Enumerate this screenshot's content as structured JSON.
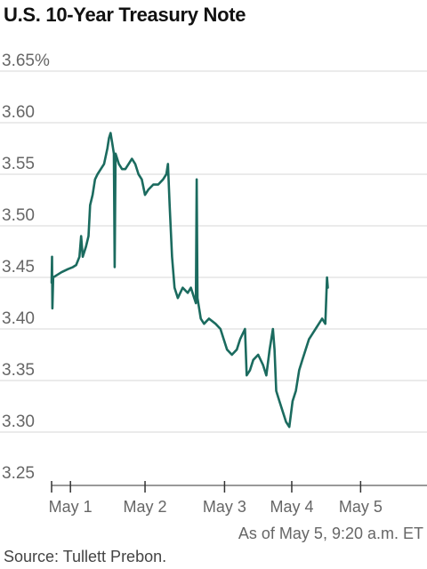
{
  "title": "U.S. 10-Year Treasury Note",
  "note": "As of May 5, 9:20 a.m. ET",
  "source": "Source: Tullett Prebon.",
  "colors": {
    "line": "#1b6b5f",
    "grid": "#d7d7d7",
    "axis": "#333333",
    "tick_text": "#666666"
  },
  "chart_data": {
    "type": "line",
    "title": "U.S. 10-Year Treasury Note",
    "xlabel": "",
    "ylabel": "",
    "ylim": [
      3.25,
      3.65
    ],
    "yticks": [
      {
        "value": 3.65,
        "label": "3.65%"
      },
      {
        "value": 3.6,
        "label": "3.60"
      },
      {
        "value": 3.55,
        "label": "3.55"
      },
      {
        "value": 3.5,
        "label": "3.50"
      },
      {
        "value": 3.45,
        "label": "3.45"
      },
      {
        "value": 3.4,
        "label": "3.40"
      },
      {
        "value": 3.35,
        "label": "3.35"
      },
      {
        "value": 3.3,
        "label": "3.30"
      },
      {
        "value": 3.25,
        "label": "3.25"
      }
    ],
    "xlim": [
      0,
      4.58
    ],
    "xticks": [
      {
        "value": 0.0,
        "label": ""
      },
      {
        "value": 0.23,
        "label": "May 1"
      },
      {
        "value": 1.14,
        "label": "May 2"
      },
      {
        "value": 2.11,
        "label": "May 3"
      },
      {
        "value": 2.93,
        "label": "May 4"
      },
      {
        "value": 3.77,
        "label": "May 5"
      }
    ],
    "grid": true,
    "series": [
      {
        "values": [
          [
            0.0,
            3.445
          ],
          [
            0.005,
            3.47
          ],
          [
            0.01,
            3.42
          ],
          [
            0.02,
            3.45
          ],
          [
            0.06,
            3.452
          ],
          [
            0.12,
            3.455
          ],
          [
            0.2,
            3.458
          ],
          [
            0.26,
            3.46
          ],
          [
            0.3,
            3.462
          ],
          [
            0.34,
            3.47
          ],
          [
            0.36,
            3.49
          ],
          [
            0.38,
            3.47
          ],
          [
            0.42,
            3.48
          ],
          [
            0.45,
            3.49
          ],
          [
            0.47,
            3.52
          ],
          [
            0.5,
            3.53
          ],
          [
            0.53,
            3.545
          ],
          [
            0.56,
            3.55
          ],
          [
            0.6,
            3.555
          ],
          [
            0.64,
            3.56
          ],
          [
            0.68,
            3.575
          ],
          [
            0.7,
            3.585
          ],
          [
            0.72,
            3.59
          ],
          [
            0.74,
            3.58
          ],
          [
            0.76,
            3.57
          ],
          [
            0.77,
            3.46
          ],
          [
            0.78,
            3.57
          ],
          [
            0.82,
            3.56
          ],
          [
            0.86,
            3.555
          ],
          [
            0.9,
            3.555
          ],
          [
            0.94,
            3.56
          ],
          [
            0.98,
            3.565
          ],
          [
            1.02,
            3.56
          ],
          [
            1.06,
            3.55
          ],
          [
            1.1,
            3.545
          ],
          [
            1.14,
            3.53
          ],
          [
            1.18,
            3.535
          ],
          [
            1.24,
            3.54
          ],
          [
            1.3,
            3.54
          ],
          [
            1.36,
            3.545
          ],
          [
            1.4,
            3.55
          ],
          [
            1.42,
            3.56
          ],
          [
            1.44,
            3.52
          ],
          [
            1.47,
            3.47
          ],
          [
            1.5,
            3.44
          ],
          [
            1.54,
            3.43
          ],
          [
            1.6,
            3.44
          ],
          [
            1.66,
            3.435
          ],
          [
            1.7,
            3.44
          ],
          [
            1.74,
            3.43
          ],
          [
            1.76,
            3.425
          ],
          [
            1.77,
            3.545
          ],
          [
            1.78,
            3.43
          ],
          [
            1.82,
            3.41
          ],
          [
            1.86,
            3.405
          ],
          [
            1.92,
            3.41
          ],
          [
            2.0,
            3.405
          ],
          [
            2.06,
            3.4
          ],
          [
            2.1,
            3.39
          ],
          [
            2.14,
            3.38
          ],
          [
            2.2,
            3.375
          ],
          [
            2.26,
            3.38
          ],
          [
            2.3,
            3.39
          ],
          [
            2.36,
            3.4
          ],
          [
            2.38,
            3.355
          ],
          [
            2.42,
            3.36
          ],
          [
            2.46,
            3.37
          ],
          [
            2.52,
            3.375
          ],
          [
            2.58,
            3.365
          ],
          [
            2.62,
            3.355
          ],
          [
            2.66,
            3.38
          ],
          [
            2.7,
            3.4
          ],
          [
            2.72,
            3.38
          ],
          [
            2.74,
            3.34
          ],
          [
            2.78,
            3.33
          ],
          [
            2.82,
            3.32
          ],
          [
            2.86,
            3.31
          ],
          [
            2.9,
            3.305
          ],
          [
            2.94,
            3.33
          ],
          [
            2.98,
            3.34
          ],
          [
            3.02,
            3.36
          ],
          [
            3.06,
            3.37
          ],
          [
            3.1,
            3.38
          ],
          [
            3.14,
            3.39
          ],
          [
            3.18,
            3.395
          ],
          [
            3.22,
            3.4
          ],
          [
            3.26,
            3.405
          ],
          [
            3.3,
            3.41
          ],
          [
            3.34,
            3.405
          ],
          [
            3.36,
            3.45
          ],
          [
            3.37,
            3.44
          ]
        ]
      }
    ]
  }
}
